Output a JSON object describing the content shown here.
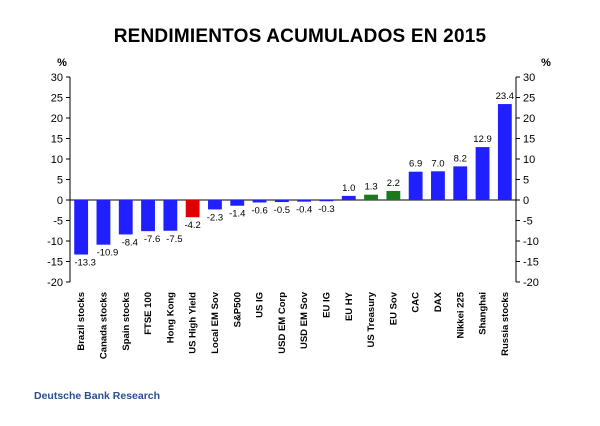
{
  "chart_data": {
    "type": "bar",
    "title": "RENDIMIENTOS ACUMULADOS EN 2015",
    "unit_left": "%",
    "unit_right": "%",
    "categories": [
      "Brazil stocks",
      "Canada stocks",
      "Spain stocks",
      "FTSE 100",
      "Hong Kong",
      "US High Yield",
      "Local EM Sov",
      "S&P500",
      "US IG",
      "USD EM Corp",
      "USD EM Sov",
      "EU IG",
      "EU HY",
      "US Treasury",
      "EU Sov",
      "CAC",
      "DAX",
      "Nikkei 225",
      "Shanghai",
      "Russia stocks"
    ],
    "values": [
      -13.3,
      -10.9,
      -8.4,
      -7.6,
      -7.5,
      -4.2,
      -2.3,
      -1.4,
      -0.6,
      -0.5,
      -0.4,
      -0.3,
      1.0,
      1.3,
      2.2,
      6.9,
      7.0,
      8.2,
      12.9,
      23.4
    ],
    "value_labels": [
      "-13.3",
      "-10.9",
      "-8.4",
      "-7.6",
      "-7.5",
      "-4.2",
      "-2.3",
      "-1.4",
      "-0.6",
      "-0.5",
      "-0.4",
      "-0.3",
      "1.0",
      "1.3",
      "2.2",
      "6.9",
      "7.0",
      "8.2",
      "12.9",
      "23.4"
    ],
    "bar_colors": [
      "#1f1fff",
      "#1f1fff",
      "#1f1fff",
      "#1f1fff",
      "#1f1fff",
      "#e00000",
      "#1f1fff",
      "#1f1fff",
      "#1f1fff",
      "#1f1fff",
      "#1f1fff",
      "#1f1fff",
      "#1f1fff",
      "#1a7a1a",
      "#1a7a1a",
      "#1f1fff",
      "#1f1fff",
      "#1f1fff",
      "#1f1fff",
      "#1f1fff"
    ],
    "ylim": [
      -20,
      30
    ],
    "yticks": [
      30,
      25,
      20,
      15,
      10,
      5,
      0,
      -5,
      -10,
      -15,
      -20
    ],
    "ytick_labels": [
      "30",
      "25",
      "20",
      "15",
      "10",
      "5",
      "0",
      "-5",
      "-10",
      "-15",
      "-20"
    ],
    "grid": false,
    "legend": "none"
  },
  "source": "Deutsche Bank Research"
}
